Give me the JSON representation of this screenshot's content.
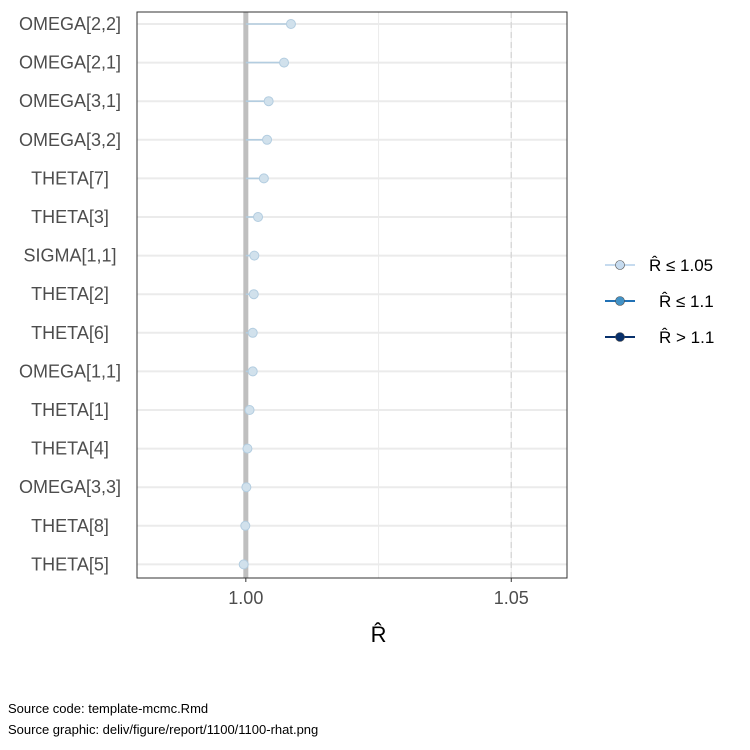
{
  "chart_data": {
    "type": "lollipop",
    "xlabel": "R̂",
    "xlim": [
      0.9795,
      1.0605
    ],
    "xticks": [
      1.0,
      1.05
    ],
    "xtick_labels": [
      "1.00",
      "1.05"
    ],
    "reference_lines": [
      1.0,
      1.05
    ],
    "params": [
      "OMEGA[2,2]",
      "OMEGA[2,1]",
      "OMEGA[3,1]",
      "OMEGA[3,2]",
      "THETA[7]",
      "THETA[3]",
      "SIGMA[1,1]",
      "THETA[2]",
      "THETA[6]",
      "OMEGA[1,1]",
      "THETA[1]",
      "THETA[4]",
      "OMEGA[3,3]",
      "THETA[8]",
      "THETA[5]"
    ],
    "values": [
      1.0085,
      1.0072,
      1.0043,
      1.004,
      1.0034,
      1.0023,
      1.0016,
      1.0015,
      1.0013,
      1.0013,
      1.0007,
      1.0003,
      1.0001,
      0.9999,
      0.9996
    ],
    "rating": [
      "low",
      "low",
      "low",
      "low",
      "low",
      "low",
      "low",
      "low",
      "low",
      "low",
      "low",
      "low",
      "low",
      "low",
      "low"
    ],
    "grid": true,
    "legend_position": "right",
    "legend": [
      {
        "key": "low",
        "label": "R̂ ≤ 1.05",
        "color": "#c6dbef"
      },
      {
        "key": "ok",
        "label": "R̂ ≤ 1.1",
        "color": "#6baed6"
      },
      {
        "key": "high",
        "label": "R̂ > 1.1",
        "color": "#08306b"
      }
    ]
  },
  "colors": {
    "point_fill": "#d1e1ec",
    "point_stroke": "#b3cde0",
    "ref_line": "#bfbfbf",
    "grid": "#ebebeb",
    "dashed": "#d9d9d9"
  },
  "caption": {
    "source_code": "Source code: template-mcmc.Rmd",
    "source_graphic": "Source graphic: deliv/figure/report/1100/1100-rhat.png"
  }
}
